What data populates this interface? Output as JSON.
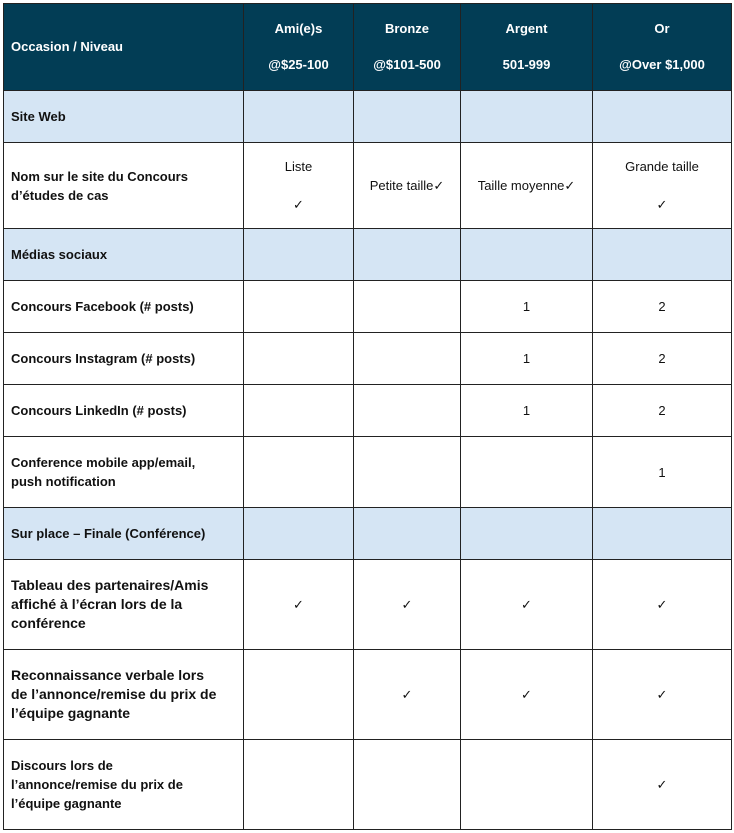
{
  "header": {
    "first": "Occasion / Niveau",
    "levels": [
      {
        "name": "Ami(e)s",
        "price": "@$25-100"
      },
      {
        "name": "Bronze",
        "price": "@$101-500"
      },
      {
        "name": "Argent",
        "price": "501-999"
      },
      {
        "name": "Or",
        "price": "@Over $1,000"
      }
    ]
  },
  "colors": {
    "header_bg": "#023d55",
    "section_bg": "#d5e5f4"
  },
  "rows": [
    {
      "label": "Site Web",
      "section": true,
      "cells": [
        "",
        "",
        "",
        ""
      ]
    },
    {
      "label": "Nom sur le site du Concours\nd’études de cas",
      "cells": [
        "Liste\n\n✓",
        "Petite taille✓",
        "Taille moyenne✓",
        "Grande taille\n\n✓"
      ]
    },
    {
      "label": "Médias sociaux",
      "section": true,
      "cells": [
        "",
        "",
        "",
        ""
      ]
    },
    {
      "label": "Concours Facebook (# posts)",
      "cells": [
        "",
        "",
        "1",
        "2"
      ]
    },
    {
      "label": "Concours Instagram (# posts)",
      "cells": [
        "",
        "",
        "1",
        "2"
      ]
    },
    {
      "label": "Concours LinkedIn (# posts)",
      "cells": [
        "",
        "",
        "1",
        "2"
      ]
    },
    {
      "label": "Conference mobile app/email,\npush notification",
      "cells": [
        "",
        "",
        "",
        "1"
      ]
    },
    {
      "label": "Sur place – Finale (Conférence)",
      "section": true,
      "cells": [
        "",
        "",
        "",
        ""
      ]
    },
    {
      "label": "Tableau des partenaires/Amis\naffiché à l’écran lors de la\nconférence",
      "big": true,
      "cells": [
        "✓",
        "✓",
        "✓",
        "✓"
      ]
    },
    {
      "label": "Reconnaissance verbale lors\nde l’annonce/remise du prix de\nl’équipe gagnante",
      "big": true,
      "cells": [
        "",
        "✓",
        "✓",
        "✓"
      ]
    },
    {
      "label": "Discours lors de\nl’annonce/remise du prix de\nl’équipe gagnante",
      "cells": [
        "",
        "",
        "",
        "✓"
      ]
    }
  ]
}
